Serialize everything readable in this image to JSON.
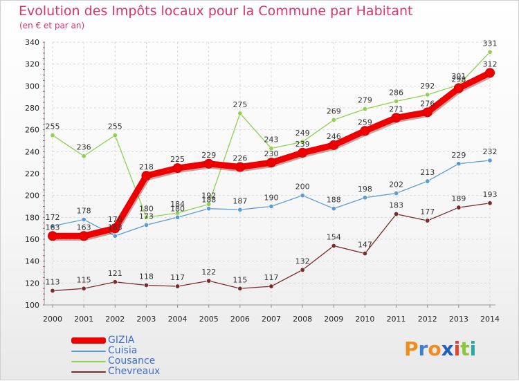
{
  "title": "Evolution des Impôts locaux pour la Commune par Habitant",
  "subtitle": "(en € et par an)",
  "brand": {
    "name": "Proxiti",
    "letters": [
      "P",
      "r",
      "o",
      "x",
      "i",
      "t",
      "i"
    ],
    "letter_colors": [
      "#f08c1e",
      "#3f7fd8",
      "#f08c1e",
      "#1f5fbf",
      "#e43f2d",
      "#8cc63f",
      "#2aa6a6"
    ]
  },
  "chart_data": {
    "type": "line",
    "title": "Evolution des Impôts locaux pour la Commune par Habitant",
    "subtitle": "(en € et par an)",
    "xlabel": "",
    "ylabel": "",
    "x": [
      "2000",
      "2001",
      "2002",
      "2003",
      "2004",
      "2005",
      "2006",
      "2007",
      "2008",
      "2009",
      "2010",
      "2011",
      "2012",
      "2013",
      "2014"
    ],
    "ylim": [
      100,
      340
    ],
    "yticks": [
      100,
      120,
      140,
      160,
      180,
      200,
      220,
      240,
      260,
      280,
      300,
      320,
      340
    ],
    "grid": true,
    "legend_position": "bottom-left",
    "series": [
      {
        "name": "GIZIA",
        "color": "#ee0000",
        "emphasis": true,
        "values": [
          163,
          163,
          170,
          218,
          225,
          229,
          226,
          230,
          239,
          246,
          259,
          271,
          276,
          298,
          312
        ]
      },
      {
        "name": "Cuisia",
        "color": "#5b9bd5",
        "values": [
          172,
          178,
          163,
          173,
          180,
          188,
          187,
          190,
          200,
          188,
          198,
          202,
          213,
          229,
          232
        ]
      },
      {
        "name": "Cousance",
        "color": "#8fd14f",
        "values": [
          255,
          236,
          255,
          180,
          184,
          192,
          275,
          243,
          249,
          269,
          279,
          286,
          292,
          301,
          331
        ]
      },
      {
        "name": "Chevreaux",
        "color": "#7a2a2a",
        "values": [
          113,
          115,
          121,
          118,
          117,
          122,
          115,
          117,
          132,
          154,
          147,
          183,
          177,
          189,
          193
        ]
      }
    ]
  }
}
